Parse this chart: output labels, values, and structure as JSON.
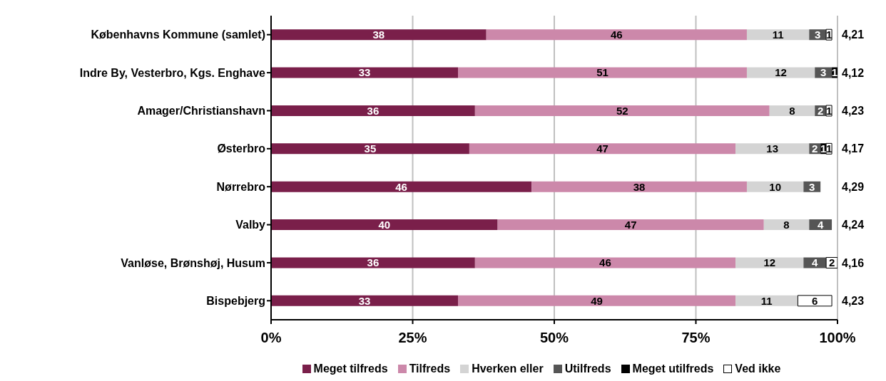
{
  "chart_data": {
    "type": "bar",
    "orientation": "horizontal",
    "stacked": true,
    "categories": [
      "Københavns Kommune (samlet)",
      "Indre By, Vesterbro, Kgs. Enghave",
      "Amager/Christianshavn",
      "Østerbro",
      "Nørrebro",
      "Valby",
      "Vanløse, Brønshøj, Husum",
      "Bispebjerg"
    ],
    "series": [
      {
        "name": "Meget tilfreds",
        "color": "#7a1f4a",
        "values": [
          38,
          33,
          36,
          35,
          46,
          40,
          36,
          33
        ]
      },
      {
        "name": "Tilfreds",
        "color": "#cc88aa",
        "values": [
          46,
          51,
          52,
          47,
          38,
          47,
          46,
          49
        ]
      },
      {
        "name": "Hverken eller",
        "color": "#d4d4d4",
        "values": [
          11,
          12,
          8,
          13,
          10,
          8,
          12,
          11
        ]
      },
      {
        "name": "Utilfreds",
        "color": "#555555",
        "values": [
          3,
          3,
          2,
          2,
          3,
          4,
          4,
          null
        ]
      },
      {
        "name": "Meget utilfreds",
        "color": "#000000",
        "values": [
          null,
          1,
          null,
          1,
          null,
          null,
          null,
          null
        ]
      },
      {
        "name": "Ved ikke",
        "color": "#ffffff",
        "values": [
          1,
          null,
          1,
          1,
          null,
          null,
          2,
          6
        ]
      }
    ],
    "xlim": [
      0,
      100
    ],
    "xticks": [
      {
        "value": 0,
        "label": "0%"
      },
      {
        "value": 25,
        "label": "25%"
      },
      {
        "value": 50,
        "label": "50%"
      },
      {
        "value": 75,
        "label": "75%"
      },
      {
        "value": 100,
        "label": "100%"
      }
    ],
    "grid": "x",
    "legend": "bottom",
    "data_labels": true,
    "annotations": [
      "4,21",
      "4,12",
      "4,23",
      "4,17",
      "4,29",
      "4,24",
      "4,16",
      "4,23"
    ]
  }
}
